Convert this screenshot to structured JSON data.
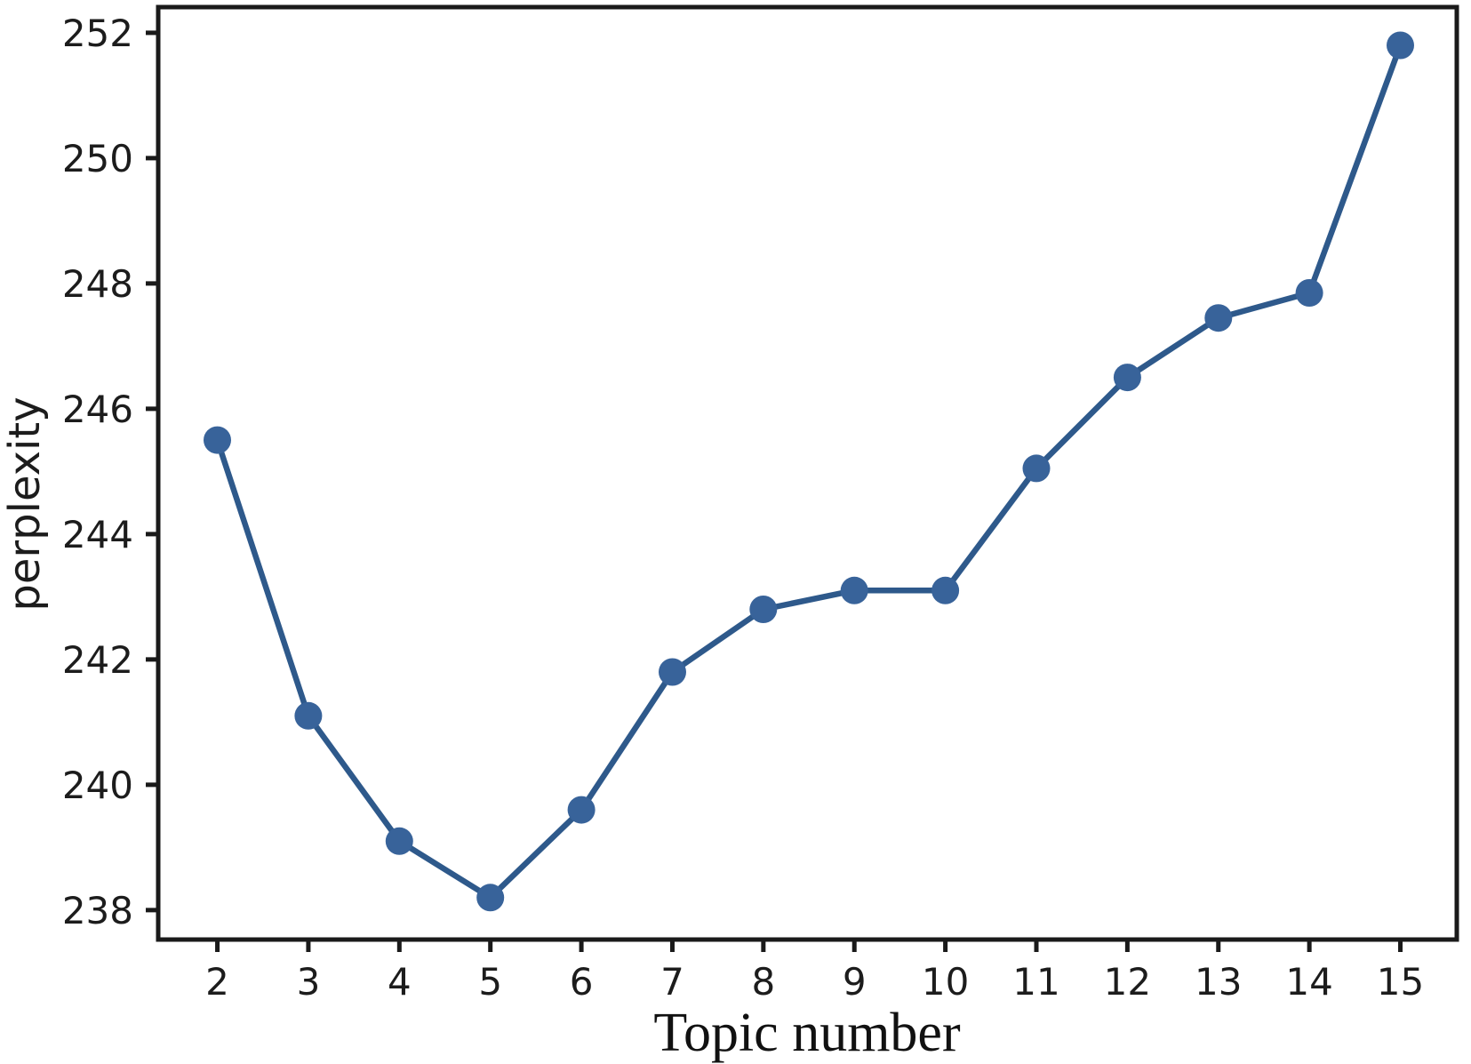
{
  "figure": {
    "background_color": "#ffffff",
    "axis_color": "#1a1a1a",
    "tick_label_color": "#1c1c1c"
  },
  "chart_data": {
    "type": "line",
    "title": "",
    "xlabel": "Topic number",
    "ylabel": "perplexity",
    "x": [
      2,
      3,
      4,
      5,
      6,
      7,
      8,
      9,
      10,
      11,
      12,
      13,
      14,
      15
    ],
    "y": [
      245.5,
      241.1,
      239.1,
      238.2,
      239.6,
      241.8,
      242.8,
      243.1,
      243.1,
      245.05,
      246.5,
      247.45,
      247.85,
      251.8
    ],
    "series_name": "perplexity",
    "x_ticks": [
      2,
      3,
      4,
      5,
      6,
      7,
      8,
      9,
      10,
      11,
      12,
      13,
      14,
      15
    ],
    "y_ticks": [
      238,
      240,
      242,
      244,
      246,
      248,
      250,
      252
    ],
    "xlim": [
      1.35,
      15.62
    ],
    "ylim": [
      237.53,
      252.41
    ],
    "grid": false,
    "legend": "none",
    "line_color": "#2e598b",
    "marker": "circle",
    "marker_color": "#38639a"
  }
}
